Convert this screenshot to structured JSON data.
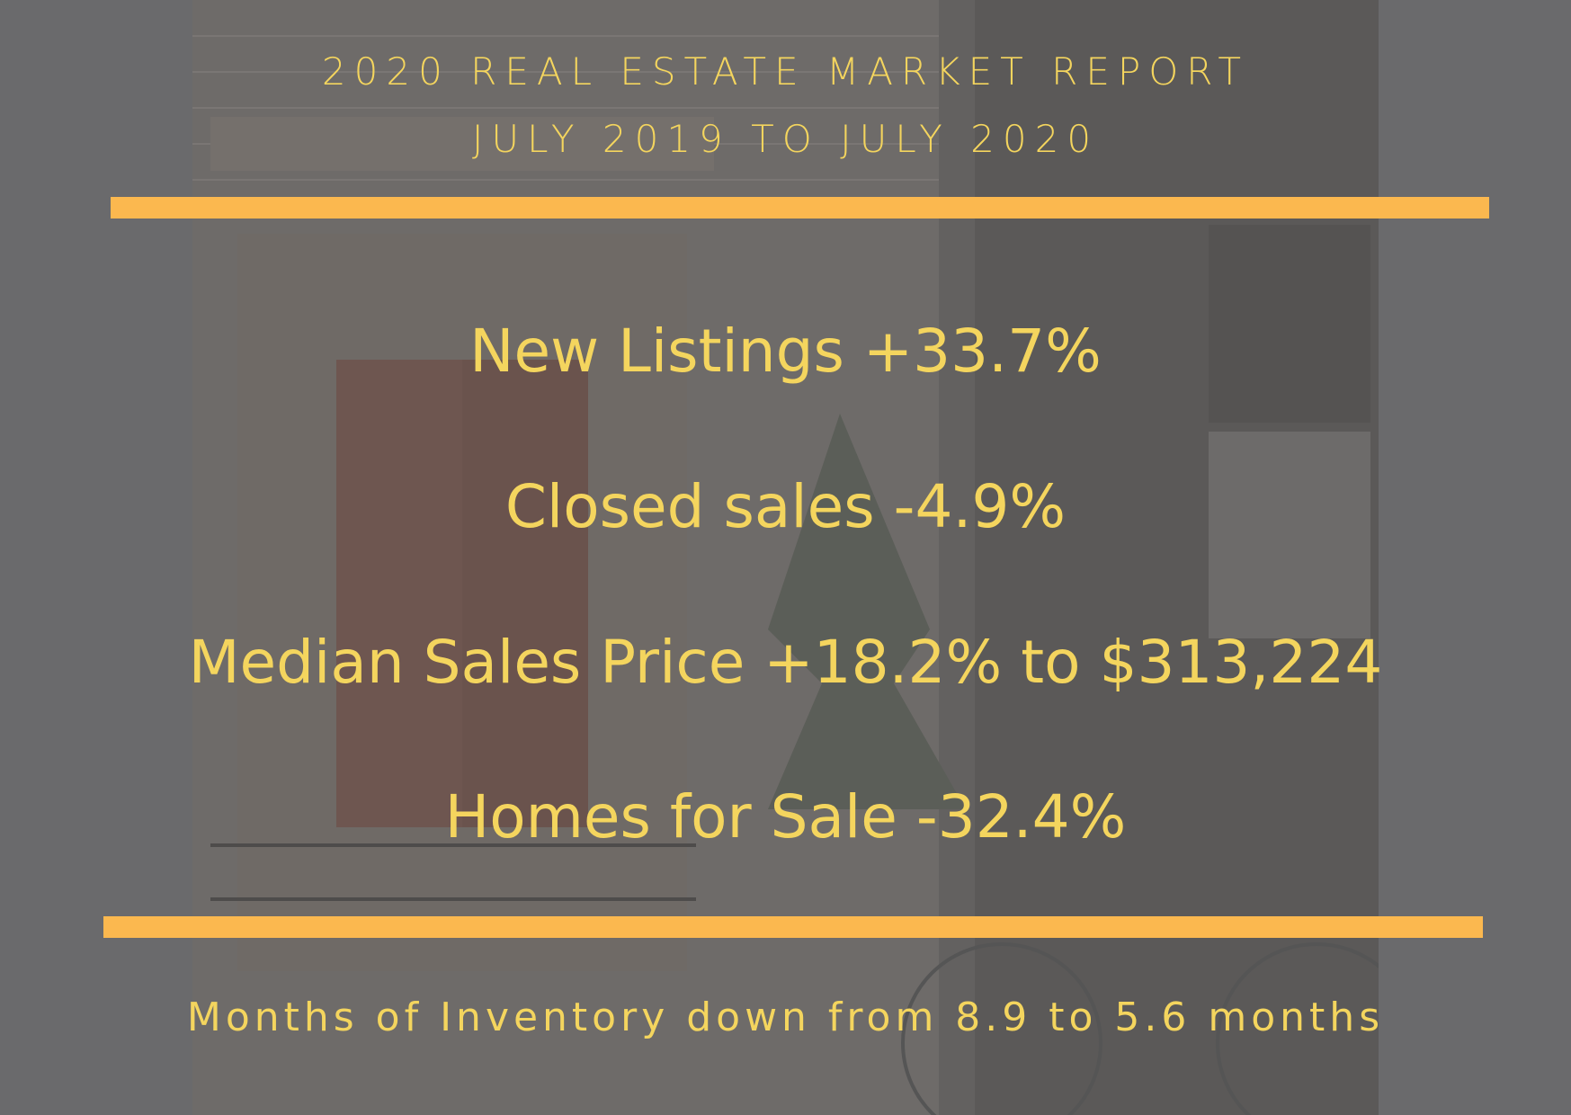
{
  "header": {
    "title": "2020 REAL ESTATE MARKET REPORT",
    "subtitle": "JULY 2019 TO JULY 2020"
  },
  "stats": [
    "New Listings +33.7%",
    "Closed sales -4.9%",
    "Median Sales Price +18.2% to $313,224",
    "Homes for Sale -32.4%"
  ],
  "footer": "Months of Inventory down from 8.9 to 5.6 months"
}
